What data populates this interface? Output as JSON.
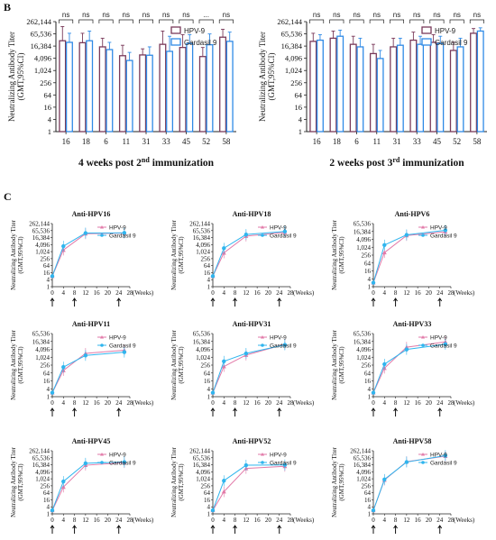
{
  "panel_labels": {
    "b": "B",
    "c": "C"
  },
  "colors": {
    "hpv9": "#7a3a5a",
    "gardasil": "#2f8ae6",
    "hpv9_line": "#e27aa8",
    "gardasil_line": "#2fb5ee"
  },
  "chart_data": [
    {
      "type": "bar",
      "panel": "B-left",
      "caption_main": "4 weeks post 2",
      "caption_sup": "nd",
      "caption_tail": " immunization",
      "ylabel": "Neutralizing Antibody Titer",
      "ylabel2": "(GMT,95%CI)",
      "y_scale": "log2",
      "ylim": [
        1,
        262144
      ],
      "yticks": [
        "1",
        "4",
        "16",
        "64",
        "256",
        "1,024",
        "4,096",
        "16,384",
        "65,536",
        "262,144"
      ],
      "categories": [
        "16",
        "18",
        "6",
        "11",
        "31",
        "33",
        "45",
        "52",
        "58"
      ],
      "significance": [
        "ns",
        "ns",
        "ns",
        "ns",
        "ns",
        "ns",
        "ns",
        "...",
        "ns"
      ],
      "legend_position": "top-right",
      "series": [
        {
          "name": "HPV-9",
          "values": [
            30000,
            24000,
            15000,
            5500,
            6000,
            20000,
            14000,
            5000,
            45000
          ],
          "err_hi": [
            150000,
            70000,
            40000,
            18000,
            12000,
            90000,
            60000,
            14000,
            110000
          ]
        },
        {
          "name": "Gardasil 9",
          "values": [
            25000,
            30000,
            11000,
            3200,
            5800,
            9000,
            22000,
            19000,
            28000
          ],
          "err_hi": [
            70000,
            90000,
            25000,
            8000,
            15000,
            50000,
            60000,
            65000,
            80000
          ]
        }
      ]
    },
    {
      "type": "bar",
      "panel": "B-right",
      "caption_main": "2 weeks post 3",
      "caption_sup": "rd",
      "caption_tail": " immunization",
      "ylabel": "Neutralizing Antibody Titer",
      "ylabel2": "(GMT,95%CI)",
      "y_scale": "log2",
      "ylim": [
        1,
        262144
      ],
      "yticks": [
        "1",
        "4",
        "16",
        "64",
        "256",
        "1,024",
        "4,096",
        "16,384",
        "65,536",
        "262,144"
      ],
      "categories": [
        "16",
        "18",
        "6",
        "11",
        "31",
        "33",
        "45",
        "52",
        "58"
      ],
      "significance": [
        "ns",
        "ns",
        "ns",
        "ns",
        "ns",
        "ns",
        "ns",
        "ns",
        "ns"
      ],
      "legend_position": "top-right",
      "series": [
        {
          "name": "HPV-9",
          "values": [
            28000,
            40000,
            20000,
            7000,
            15000,
            32000,
            25000,
            10000,
            70000
          ],
          "err_hi": [
            70000,
            90000,
            50000,
            20000,
            40000,
            80000,
            60000,
            25000,
            120000
          ]
        },
        {
          "name": "Gardasil 9",
          "values": [
            32000,
            50000,
            15000,
            4000,
            18000,
            20000,
            22000,
            15000,
            90000
          ],
          "err_hi": [
            60000,
            100000,
            40000,
            10000,
            40000,
            50000,
            50000,
            40000,
            130000
          ]
        }
      ]
    },
    {
      "type": "line",
      "title": "Anti-HPV16",
      "yticks": [
        "1",
        "4",
        "16",
        "64",
        "256",
        "1,024",
        "4,096",
        "16,384",
        "65,536",
        "262,144"
      ],
      "ymax": 262144,
      "x": [
        0,
        4,
        12,
        26
      ],
      "xticks": [
        "0",
        "4",
        "8",
        "12",
        "16",
        "20",
        "24",
        "28"
      ],
      "xunit": "(Weeks)",
      "ylabel": "Neutralizing Antibody Titer",
      "ylabel2": "(GMT,95%CI)",
      "series": [
        {
          "name": "HPV-9",
          "values": [
            8,
            1400,
            35000,
            40000
          ]
        },
        {
          "name": "Gardasil 9",
          "values": [
            8,
            3000,
            40000,
            42000
          ]
        }
      ]
    },
    {
      "type": "line",
      "title": "Anti-HPV18",
      "yticks": [
        "1",
        "4",
        "16",
        "64",
        "256",
        "1,024",
        "4,096",
        "16,384",
        "65,536",
        "262,144"
      ],
      "ymax": 262144,
      "x": [
        0,
        4,
        12,
        26
      ],
      "xticks": [
        "0",
        "4",
        "8",
        "12",
        "16",
        "20",
        "24",
        "28"
      ],
      "xunit": "(Weeks)",
      "ylabel": "Neutralizing Antibody Titer",
      "ylabel2": "(GMT,95%CI)",
      "series": [
        {
          "name": "HPV-9",
          "values": [
            8,
            800,
            22000,
            45000
          ]
        },
        {
          "name": "Gardasil 9",
          "values": [
            8,
            2000,
            30000,
            55000
          ]
        }
      ]
    },
    {
      "type": "line",
      "title": "Anti-HPV6",
      "yticks": [
        "1",
        "4",
        "16",
        "64",
        "256",
        "1,024",
        "4,096",
        "16,384",
        "65,536"
      ],
      "ymax": 65536,
      "x": [
        0,
        4,
        12,
        26
      ],
      "xticks": [
        "0",
        "4",
        "8",
        "12",
        "16",
        "20",
        "24",
        "28"
      ],
      "xunit": "(Weeks)",
      "ylabel": "Neutralizing Antibody Titer",
      "ylabel2": "(GMT,95%CI)",
      "series": [
        {
          "name": "HPV-9",
          "values": [
            2,
            400,
            8000,
            15000
          ]
        },
        {
          "name": "Gardasil 9",
          "values": [
            2,
            1500,
            9000,
            20000
          ]
        }
      ]
    },
    {
      "type": "line",
      "title": "Anti-HPV11",
      "yticks": [
        "1",
        "4",
        "16",
        "64",
        "256",
        "1,024",
        "4,096",
        "16,384",
        "65,536"
      ],
      "ymax": 65536,
      "x": [
        0,
        4,
        12,
        26
      ],
      "xticks": [
        "0",
        "4",
        "8",
        "12",
        "16",
        "20",
        "24",
        "28"
      ],
      "xunit": "(Weeks)",
      "ylabel": "Neutralizing Antibody Titer",
      "ylabel2": "(GMT,95%CI)",
      "series": [
        {
          "name": "HPV-9",
          "values": [
            2,
            100,
            2000,
            3500
          ]
        },
        {
          "name": "Gardasil 9",
          "values": [
            2,
            180,
            1400,
            2500
          ]
        }
      ]
    },
    {
      "type": "line",
      "title": "Anti-HPV31",
      "yticks": [
        "1",
        "4",
        "16",
        "64",
        "256",
        "1,024",
        "4,096",
        "16,384",
        "65,536"
      ],
      "ymax": 65536,
      "x": [
        0,
        4,
        12,
        26
      ],
      "xticks": [
        "0",
        "4",
        "8",
        "12",
        "16",
        "20",
        "24",
        "28"
      ],
      "xunit": "(Weeks)",
      "ylabel": "Neutralizing Antibody Titer",
      "ylabel2": "(GMT,95%CI)",
      "series": [
        {
          "name": "HPV-9",
          "values": [
            2,
            200,
            1500,
            10000
          ]
        },
        {
          "name": "Gardasil 9",
          "values": [
            2,
            500,
            2000,
            9000
          ]
        }
      ]
    },
    {
      "type": "line",
      "title": "Anti-HPV33",
      "yticks": [
        "1",
        "4",
        "16",
        "64",
        "256",
        "1,024",
        "4,096",
        "16,384",
        "65,536"
      ],
      "ymax": 65536,
      "x": [
        0,
        4,
        12,
        26
      ],
      "xticks": [
        "0",
        "4",
        "8",
        "12",
        "16",
        "20",
        "24",
        "28"
      ],
      "xunit": "(Weeks)",
      "ylabel": "Neutralizing Antibody Titer",
      "ylabel2": "(GMT,95%CI)",
      "series": [
        {
          "name": "HPV-9",
          "values": [
            2,
            150,
            6000,
            15000
          ]
        },
        {
          "name": "Gardasil 9",
          "values": [
            2,
            300,
            4000,
            10000
          ]
        }
      ]
    },
    {
      "type": "line",
      "title": "Anti-HPV45",
      "yticks": [
        "1",
        "4",
        "16",
        "64",
        "256",
        "1,024",
        "4,096",
        "16,384",
        "65,536",
        "262,144"
      ],
      "ymax": 262144,
      "x": [
        0,
        4,
        12,
        26
      ],
      "xticks": [
        "0",
        "4",
        "8",
        "12",
        "16",
        "20",
        "24",
        "28"
      ],
      "xunit": "(Weeks)",
      "ylabel": "Neutralizing Antibody Titer",
      "ylabel2": "(GMT,95%CI)",
      "series": [
        {
          "name": "HPV-9",
          "values": [
            2,
            200,
            15000,
            25000
          ]
        },
        {
          "name": "Gardasil 9",
          "values": [
            2,
            600,
            22000,
            28000
          ]
        }
      ]
    },
    {
      "type": "line",
      "title": "Anti-HPV52",
      "yticks": [
        "1",
        "4",
        "16",
        "64",
        "256",
        "1,024",
        "4,096",
        "16,384",
        "65,536",
        "262,144"
      ],
      "ymax": 262144,
      "x": [
        0,
        4,
        12,
        26
      ],
      "xticks": [
        "0",
        "4",
        "8",
        "12",
        "16",
        "20",
        "24",
        "28"
      ],
      "xunit": "(Weeks)",
      "ylabel": "Neutralizing Antibody Titer",
      "ylabel2": "(GMT,95%CI)",
      "series": [
        {
          "name": "HPV-9",
          "values": [
            2,
            80,
            8000,
            12000
          ]
        },
        {
          "name": "Gardasil 9",
          "values": [
            2,
            700,
            15000,
            16000
          ]
        }
      ]
    },
    {
      "type": "line",
      "title": "Anti-HPV58",
      "yticks": [
        "1",
        "4",
        "16",
        "64",
        "256",
        "1,024",
        "4,096",
        "16,384",
        "65,536",
        "262,144"
      ],
      "ymax": 262144,
      "x": [
        0,
        4,
        12,
        26
      ],
      "xticks": [
        "0",
        "4",
        "8",
        "12",
        "16",
        "20",
        "24",
        "28"
      ],
      "xunit": "(Weeks)",
      "ylabel": "Neutralizing Antibody Titer",
      "ylabel2": "(GMT,95%CI)",
      "series": [
        {
          "name": "HPV-9",
          "values": [
            2,
            800,
            30000,
            90000
          ]
        },
        {
          "name": "Gardasil 9",
          "values": [
            2,
            900,
            28000,
            100000
          ]
        }
      ]
    }
  ]
}
